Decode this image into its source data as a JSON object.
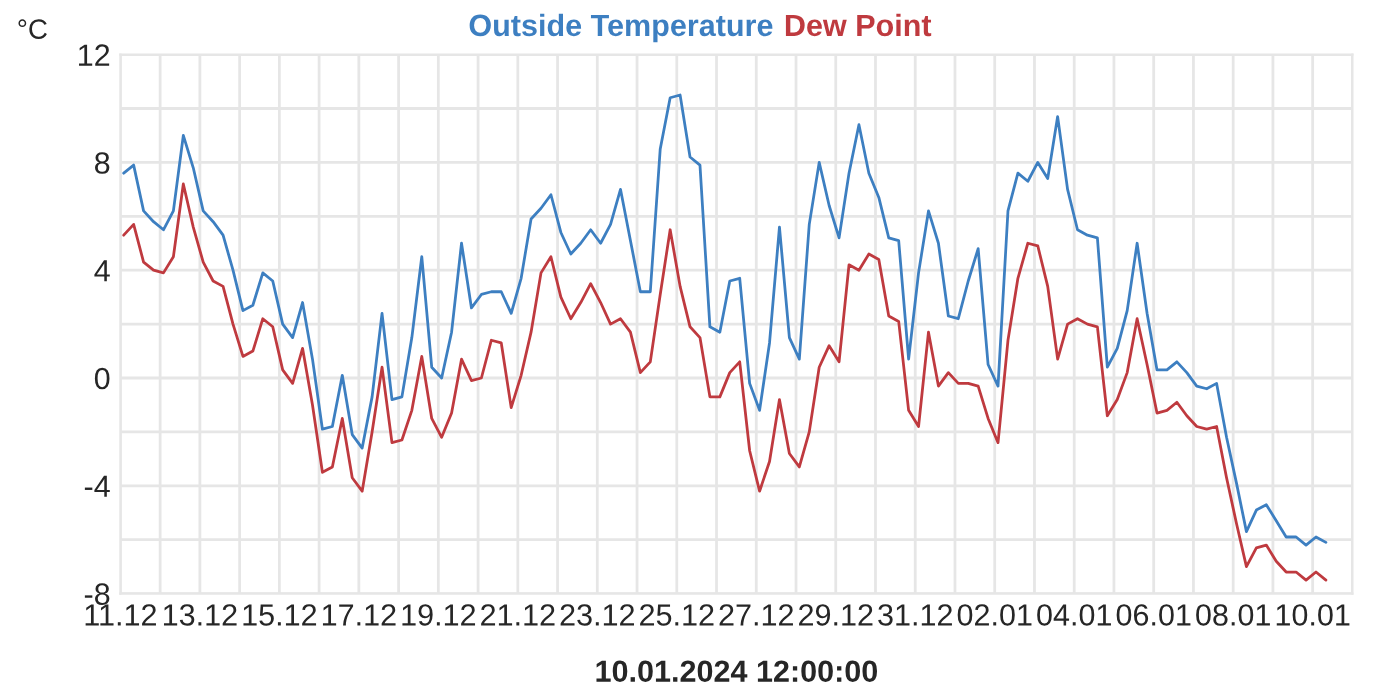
{
  "chart_data": {
    "type": "line",
    "xlabel": "10.01.2024 12:00:00",
    "ylabel": "°C",
    "legend": "top",
    "grid": true,
    "x": [
      "2023-12-11T02:00",
      "2023-12-11T08:00",
      "2023-12-11T14:00",
      "2023-12-11T20:00",
      "2023-12-12T02:00",
      "2023-12-12T08:00",
      "2023-12-12T14:00",
      "2023-12-12T20:00",
      "2023-12-13T02:00",
      "2023-12-13T08:00",
      "2023-12-13T14:00",
      "2023-12-13T20:00",
      "2023-12-14T02:00",
      "2023-12-14T08:00",
      "2023-12-14T14:00",
      "2023-12-14T20:00",
      "2023-12-15T02:00",
      "2023-12-15T08:00",
      "2023-12-15T14:00",
      "2023-12-15T20:00",
      "2023-12-16T02:00",
      "2023-12-16T08:00",
      "2023-12-16T14:00",
      "2023-12-16T20:00",
      "2023-12-17T02:00",
      "2023-12-17T08:00",
      "2023-12-17T14:00",
      "2023-12-17T20:00",
      "2023-12-18T02:00",
      "2023-12-18T08:00",
      "2023-12-18T14:00",
      "2023-12-18T20:00",
      "2023-12-19T02:00",
      "2023-12-19T08:00",
      "2023-12-19T14:00",
      "2023-12-19T20:00",
      "2023-12-20T02:00",
      "2023-12-20T08:00",
      "2023-12-20T14:00",
      "2023-12-20T20:00",
      "2023-12-21T02:00",
      "2023-12-21T08:00",
      "2023-12-21T14:00",
      "2023-12-21T20:00",
      "2023-12-22T02:00",
      "2023-12-22T08:00",
      "2023-12-22T14:00",
      "2023-12-22T20:00",
      "2023-12-23T02:00",
      "2023-12-23T08:00",
      "2023-12-23T14:00",
      "2023-12-23T20:00",
      "2023-12-24T02:00",
      "2023-12-24T08:00",
      "2023-12-24T14:00",
      "2023-12-24T20:00",
      "2023-12-25T02:00",
      "2023-12-25T08:00",
      "2023-12-25T14:00",
      "2023-12-25T20:00",
      "2023-12-26T02:00",
      "2023-12-26T08:00",
      "2023-12-26T14:00",
      "2023-12-26T20:00",
      "2023-12-27T02:00",
      "2023-12-27T08:00",
      "2023-12-27T14:00",
      "2023-12-27T20:00",
      "2023-12-28T02:00",
      "2023-12-28T08:00",
      "2023-12-28T14:00",
      "2023-12-28T20:00",
      "2023-12-29T02:00",
      "2023-12-29T08:00",
      "2023-12-29T14:00",
      "2023-12-29T20:00",
      "2023-12-30T02:00",
      "2023-12-30T08:00",
      "2023-12-30T14:00",
      "2023-12-30T20:00",
      "2023-12-31T02:00",
      "2023-12-31T08:00",
      "2023-12-31T14:00",
      "2023-12-31T20:00",
      "2024-01-01T02:00",
      "2024-01-01T08:00",
      "2024-01-01T14:00",
      "2024-01-01T20:00",
      "2024-01-02T02:00",
      "2024-01-02T08:00",
      "2024-01-02T14:00",
      "2024-01-02T20:00",
      "2024-01-03T02:00",
      "2024-01-03T08:00",
      "2024-01-03T14:00",
      "2024-01-03T20:00",
      "2024-01-04T02:00",
      "2024-01-04T08:00",
      "2024-01-04T14:00",
      "2024-01-04T20:00",
      "2024-01-05T02:00",
      "2024-01-05T08:00",
      "2024-01-05T14:00",
      "2024-01-05T20:00",
      "2024-01-06T02:00",
      "2024-01-06T08:00",
      "2024-01-06T14:00",
      "2024-01-06T20:00",
      "2024-01-07T02:00",
      "2024-01-07T08:00",
      "2024-01-07T14:00",
      "2024-01-07T20:00",
      "2024-01-08T02:00",
      "2024-01-08T08:00",
      "2024-01-08T14:00",
      "2024-01-08T20:00",
      "2024-01-09T02:00",
      "2024-01-09T08:00",
      "2024-01-09T14:00",
      "2024-01-09T20:00",
      "2024-01-10T02:00",
      "2024-01-10T08:00"
    ],
    "series": [
      {
        "name": "Outside Temperature",
        "color": "#3d7fc1",
        "values": [
          7.6,
          7.9,
          6.2,
          5.8,
          5.5,
          6.2,
          9.0,
          7.8,
          6.2,
          5.8,
          5.3,
          4.0,
          2.5,
          2.7,
          3.9,
          3.6,
          2.0,
          1.5,
          2.8,
          0.7,
          -1.9,
          -1.8,
          0.1,
          -2.1,
          -2.6,
          -0.7,
          2.4,
          -0.8,
          -0.7,
          1.5,
          4.5,
          0.4,
          0.0,
          1.7,
          5.0,
          2.6,
          3.1,
          3.2,
          3.2,
          2.4,
          3.7,
          5.9,
          6.3,
          6.8,
          5.4,
          4.6,
          5.0,
          5.5,
          5.0,
          5.7,
          7.0,
          5.1,
          3.2,
          3.2,
          8.5,
          10.4,
          10.5,
          8.2,
          7.9,
          1.9,
          1.7,
          3.6,
          3.7,
          -0.2,
          -1.2,
          1.3,
          5.6,
          1.5,
          0.7,
          5.7,
          8.0,
          6.4,
          5.2,
          7.6,
          9.4,
          7.6,
          6.7,
          5.2,
          5.1,
          0.7,
          3.9,
          6.2,
          5.0,
          2.3,
          2.2,
          3.6,
          4.8,
          0.5,
          -0.3,
          6.2,
          7.6,
          7.3,
          8.0,
          7.4,
          9.7,
          7.0,
          5.5,
          5.3,
          5.2,
          0.4,
          1.1,
          2.5,
          5.0,
          2.4,
          0.3,
          0.3,
          0.6,
          0.2,
          -0.3,
          -0.4,
          -0.2,
          -2.2,
          -3.9,
          -5.7,
          -4.9,
          -4.7,
          -5.3,
          -5.9,
          -5.9,
          -6.2,
          -5.9,
          -6.1
        ]
      },
      {
        "name": "Dew Point",
        "color": "#bf3a3f",
        "values": [
          5.3,
          5.7,
          4.3,
          4.0,
          3.9,
          4.5,
          7.2,
          5.6,
          4.3,
          3.6,
          3.4,
          2.0,
          0.8,
          1.0,
          2.2,
          1.9,
          0.3,
          -0.2,
          1.1,
          -1.0,
          -3.5,
          -3.3,
          -1.5,
          -3.7,
          -4.2,
          -2.0,
          0.4,
          -2.4,
          -2.3,
          -1.2,
          0.8,
          -1.5,
          -2.2,
          -1.3,
          0.7,
          -0.1,
          0.0,
          1.4,
          1.3,
          -1.1,
          0.1,
          1.7,
          3.9,
          4.5,
          3.0,
          2.2,
          2.8,
          3.5,
          2.8,
          2.0,
          2.2,
          1.7,
          0.2,
          0.6,
          3.1,
          5.5,
          3.4,
          1.9,
          1.5,
          -0.7,
          -0.7,
          0.2,
          0.6,
          -2.7,
          -4.2,
          -3.1,
          -0.8,
          -2.8,
          -3.3,
          -2.0,
          0.4,
          1.2,
          0.6,
          4.2,
          4.0,
          4.6,
          4.4,
          2.3,
          2.1,
          -1.2,
          -1.8,
          1.7,
          -0.3,
          0.2,
          -0.2,
          -0.2,
          -0.3,
          -1.5,
          -2.4,
          1.4,
          3.7,
          5.0,
          4.9,
          3.4,
          0.7,
          2.0,
          2.2,
          2.0,
          1.9,
          -1.4,
          -0.8,
          0.2,
          2.2,
          0.5,
          -1.3,
          -1.2,
          -0.9,
          -1.4,
          -1.8,
          -1.9,
          -1.8,
          -3.7,
          -5.4,
          -7.0,
          -6.3,
          -6.2,
          -6.8,
          -7.2,
          -7.2,
          -7.5,
          -7.2,
          -7.5
        ]
      }
    ],
    "xlim": [
      "2023-12-11",
      "2024-01-11"
    ],
    "xticks": [
      {
        "value": "2023-12-11",
        "label": "11.12"
      },
      {
        "value": "2023-12-13",
        "label": "13.12"
      },
      {
        "value": "2023-12-15",
        "label": "15.12"
      },
      {
        "value": "2023-12-17",
        "label": "17.12"
      },
      {
        "value": "2023-12-19",
        "label": "19.12"
      },
      {
        "value": "2023-12-21",
        "label": "21.12"
      },
      {
        "value": "2023-12-23",
        "label": "23.12"
      },
      {
        "value": "2023-12-25",
        "label": "25.12"
      },
      {
        "value": "2023-12-27",
        "label": "27.12"
      },
      {
        "value": "2023-12-29",
        "label": "29.12"
      },
      {
        "value": "2023-12-31",
        "label": "31.12"
      },
      {
        "value": "2024-01-02",
        "label": "02.01"
      },
      {
        "value": "2024-01-04",
        "label": "04.01"
      },
      {
        "value": "2024-01-06",
        "label": "06.01"
      },
      {
        "value": "2024-01-08",
        "label": "08.01"
      },
      {
        "value": "2024-01-10",
        "label": "10.01"
      }
    ],
    "ylim": [
      -8,
      12
    ],
    "yticks": [
      -8,
      -4,
      0,
      4,
      8,
      12
    ]
  }
}
